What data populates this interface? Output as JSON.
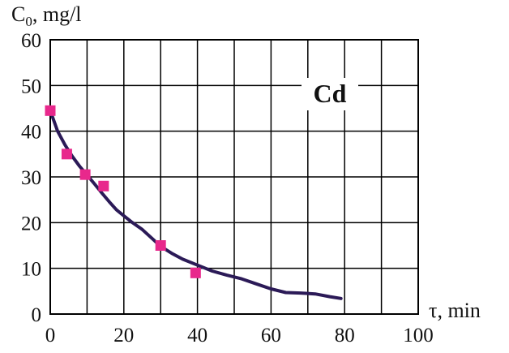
{
  "chart_data": {
    "type": "line",
    "title": "",
    "xlabel": "τ, min",
    "ylabel_main": "C",
    "ylabel_sub": "0",
    "ylabel_rest": ", mg/l",
    "annotation": "Cd",
    "xlim": [
      0,
      100
    ],
    "ylim": [
      0,
      60
    ],
    "x_ticks": [
      0,
      20,
      40,
      60,
      80,
      100
    ],
    "y_ticks": [
      0,
      10,
      20,
      30,
      40,
      50,
      60
    ],
    "x_grid": [
      0,
      10,
      20,
      30,
      40,
      50,
      60,
      70,
      80,
      90,
      100
    ],
    "y_grid": [
      0,
      10,
      20,
      30,
      40,
      50,
      60
    ],
    "grid": true,
    "colors": {
      "line": "#2b1a57",
      "markers": "#e8288c",
      "grid": "#000000"
    },
    "series": [
      {
        "kind": "line",
        "x": [
          0,
          2,
          4,
          6,
          8,
          10,
          12,
          14,
          16,
          18,
          20,
          22,
          25,
          28,
          30,
          33,
          36,
          40,
          44,
          48,
          52,
          56,
          60,
          64,
          68,
          72,
          76,
          79
        ],
        "y": [
          44.5,
          40,
          37,
          34.5,
          32.3,
          30.4,
          28.5,
          26.5,
          24.6,
          22.8,
          21.5,
          20.2,
          18.5,
          16.3,
          14.8,
          13.3,
          12,
          10.7,
          9.4,
          8.5,
          7.7,
          6.6,
          5.5,
          4.7,
          4.6,
          4.4,
          3.8,
          3.4
        ]
      },
      {
        "kind": "scatter",
        "x": [
          0,
          4.5,
          9.5,
          14.5,
          30,
          39.5
        ],
        "y": [
          44.5,
          35,
          30.5,
          28,
          15,
          9
        ]
      }
    ]
  }
}
